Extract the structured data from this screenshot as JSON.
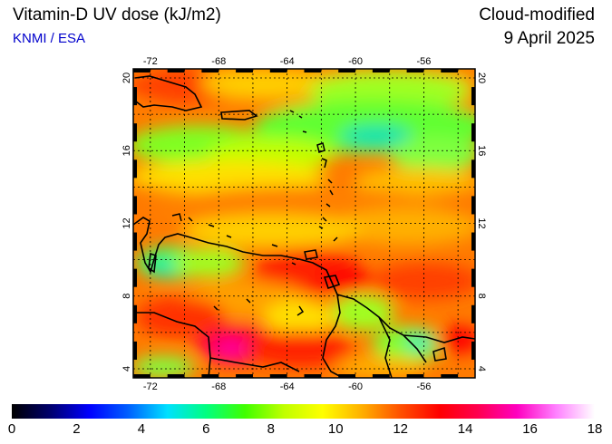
{
  "header": {
    "title": "Vitamin-D UV dose (kJ/m2)",
    "source": "KNMI / ESA",
    "product": "Cloud-modified",
    "date": "9 April 2025"
  },
  "colors": {
    "source_text": "#0000cc",
    "scale": [
      "#000000",
      "#00006e",
      "#0000ff",
      "#0060ff",
      "#00e0ff",
      "#00ff80",
      "#40ff00",
      "#c0ff00",
      "#ffff00",
      "#ffb000",
      "#ff5000",
      "#ff0000",
      "#ff0050",
      "#ff00c0",
      "#ff80ff",
      "#ffffff"
    ]
  },
  "map": {
    "lon_range": [
      -73,
      -53
    ],
    "lat_range": [
      3.5,
      20.5
    ],
    "lon_ticks": [
      "-72",
      "-68",
      "-64",
      "-60",
      "-56"
    ],
    "lat_ticks": [
      "4",
      "8",
      "12",
      "16",
      "20"
    ],
    "grid": true
  },
  "colorbar": {
    "range": [
      0,
      18
    ],
    "labels": [
      "0",
      "2",
      "4",
      "6",
      "8",
      "10",
      "12",
      "14",
      "16",
      "18"
    ]
  }
}
